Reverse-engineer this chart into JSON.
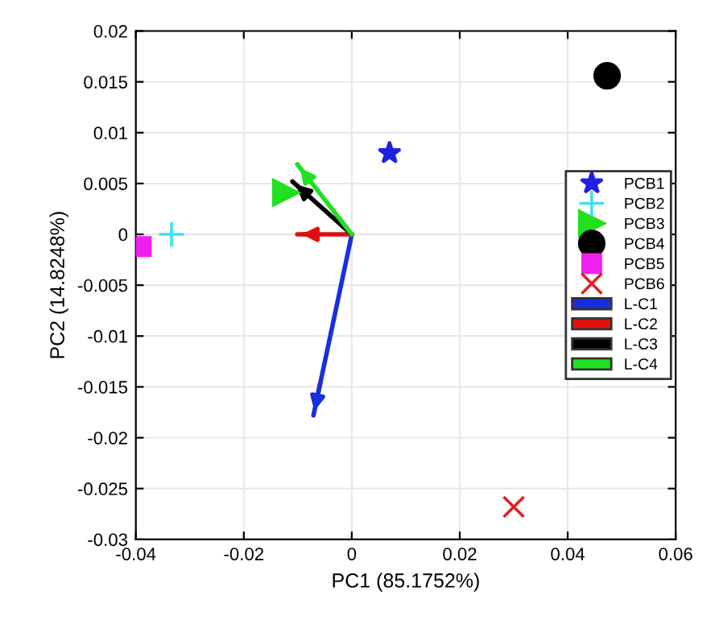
{
  "chart_data": {
    "type": "scatter",
    "xlabel": "PC1 (85.1752%)",
    "ylabel": "PC2 (14.8248%)",
    "xlim": [
      -0.04,
      0.06
    ],
    "ylim": [
      -0.03,
      0.02
    ],
    "xticks": [
      -0.04,
      -0.02,
      0,
      0.02,
      0.04,
      0.06
    ],
    "yticks": [
      -0.03,
      -0.025,
      -0.02,
      -0.015,
      -0.01,
      -0.005,
      0,
      0.005,
      0.01,
      0.015,
      0.02
    ],
    "grid": true,
    "legend": "right",
    "series": [
      {
        "name": "PCB1",
        "marker": "star",
        "color": "#2020e0",
        "x": [
          0.007
        ],
        "values": [
          0.008
        ]
      },
      {
        "name": "PCB2",
        "marker": "cross",
        "color": "#40e0f0",
        "x": [
          -0.0334
        ],
        "values": [
          0
        ]
      },
      {
        "name": "PCB3",
        "marker": "triangle",
        "color": "#20e020",
        "x": [
          -0.0122
        ],
        "values": [
          0.0041
        ]
      },
      {
        "name": "PCB4",
        "marker": "circle",
        "color": "#000000",
        "x": [
          0.0473
        ],
        "values": [
          0.0156
        ]
      },
      {
        "name": "PCB5",
        "marker": "square",
        "color": "#f020f0",
        "x": [
          -0.039
        ],
        "values": [
          -0.0012
        ]
      },
      {
        "name": "PCB6",
        "marker": "x",
        "color": "#e02020",
        "x": [
          0.03
        ],
        "values": [
          -0.0268
        ]
      },
      {
        "name": "L-C1",
        "type": "line",
        "color": "#1a2ee0",
        "x": [
          0,
          -0.0071
        ],
        "values": [
          0,
          -0.0178
        ]
      },
      {
        "name": "L-C2",
        "type": "line",
        "color": "#e01010",
        "x": [
          0,
          -0.0101
        ],
        "values": [
          0,
          0
        ]
      },
      {
        "name": "L-C3",
        "type": "line",
        "color": "#000000",
        "x": [
          0,
          -0.011
        ],
        "values": [
          0,
          0.0052
        ]
      },
      {
        "name": "L-C4",
        "type": "line",
        "color": "#20e020",
        "x": [
          0,
          -0.0101
        ],
        "values": [
          0,
          0.0069
        ]
      }
    ]
  }
}
